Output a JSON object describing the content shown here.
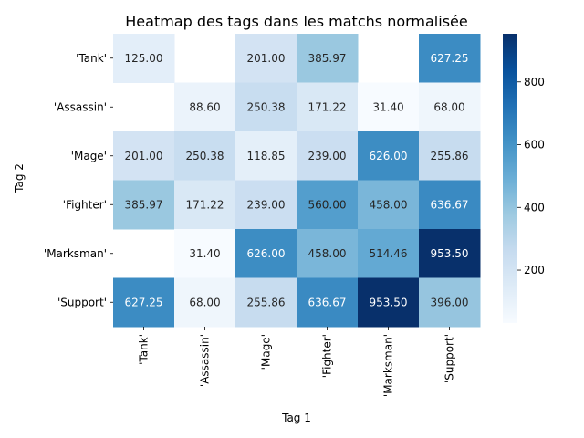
{
  "chart_data": {
    "type": "heatmap",
    "title": "Heatmap des tags dans les matchs normalisée",
    "xlabel": "Tag 1",
    "ylabel": "Tag 2",
    "x_categories": [
      "'Tank'",
      "'Assassin'",
      "'Mage'",
      "'Fighter'",
      "'Marksman'",
      "'Support'"
    ],
    "y_categories": [
      "'Tank'",
      "'Assassin'",
      "'Mage'",
      "'Fighter'",
      "'Marksman'",
      "'Support'"
    ],
    "values": [
      [
        125.0,
        null,
        201.0,
        385.97,
        null,
        627.25
      ],
      [
        null,
        88.6,
        250.38,
        171.22,
        31.4,
        68.0
      ],
      [
        201.0,
        250.38,
        118.85,
        239.0,
        626.0,
        255.86
      ],
      [
        385.97,
        171.22,
        239.0,
        560.0,
        458.0,
        636.67
      ],
      [
        null,
        31.4,
        626.0,
        458.0,
        514.46,
        953.5
      ],
      [
        627.25,
        68.0,
        255.86,
        636.67,
        953.5,
        396.0
      ]
    ],
    "value_format": "0.00",
    "colormap": "Blues",
    "color_range": [
      31.4,
      953.5
    ],
    "colorbar_ticks": [
      200,
      400,
      600,
      800
    ],
    "colors": {
      "low": "#f7fbff",
      "high": "#08306b",
      "text_dark": "#262626",
      "text_light": "#ffffff"
    }
  }
}
